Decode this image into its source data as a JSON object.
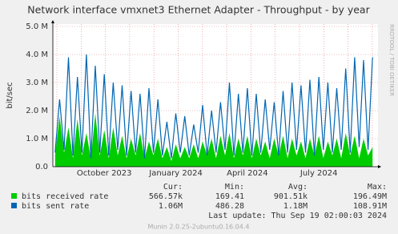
{
  "chart_data": {
    "type": "line",
    "title": "Network interface vmxnet3 Ethernet Adapter - Throughput - by year",
    "y_label": "bit/sec",
    "side_text": "RRDTOOL / TOBI OETIKER",
    "categories": [
      null,
      null,
      null,
      null,
      null,
      null,
      null,
      null,
      null,
      null,
      null,
      "October 2023",
      null,
      null,
      null,
      null,
      null,
      null,
      null,
      null,
      null,
      null,
      null,
      null,
      null,
      null,
      null,
      "January 2024",
      null,
      null,
      null,
      null,
      null,
      null,
      null,
      null,
      null,
      null,
      null,
      null,
      null,
      null,
      null,
      "April 2024",
      null,
      null,
      null,
      null,
      null,
      null,
      null,
      null,
      null,
      null,
      null,
      null,
      null,
      null,
      null,
      "July 2024",
      null,
      null,
      null,
      null,
      null,
      null,
      null,
      null,
      null,
      null,
      null,
      null
    ],
    "ylim": [
      0,
      5000000
    ],
    "yticks": [
      {
        "value": 0,
        "label": "0.0"
      },
      {
        "value": 1000000,
        "label": "1.0 M"
      },
      {
        "value": 2000000,
        "label": "2.0 M"
      },
      {
        "value": 3000000,
        "label": "3.0 M"
      },
      {
        "value": 4000000,
        "label": "4.0 M"
      },
      {
        "value": 5000000,
        "label": "5.0 M"
      }
    ],
    "grid": true,
    "stat_headers": [
      "Cur:",
      "Min:",
      "Avg:",
      "Max:"
    ],
    "series": [
      {
        "name": "bits received rate",
        "color": "#00cc00",
        "stats": [
          "566.57k",
          "169.41",
          "901.51k",
          "196.49M"
        ],
        "values": [
          400000,
          1800000,
          500000,
          1400000,
          300000,
          1700000,
          400000,
          1200000,
          300000,
          1900000,
          400000,
          1300000,
          300000,
          1400000,
          400000,
          1100000,
          300000,
          1000000,
          400000,
          1200000,
          300000,
          900000,
          400000,
          1000000,
          300000,
          700000,
          200000,
          800000,
          300000,
          700000,
          300000,
          800000,
          300000,
          900000,
          400000,
          1000000,
          300000,
          1100000,
          400000,
          1200000,
          300000,
          1000000,
          400000,
          1100000,
          300000,
          1000000,
          400000,
          900000,
          300000,
          1000000,
          400000,
          1100000,
          300000,
          1000000,
          400000,
          900000,
          300000,
          1000000,
          400000,
          1100000,
          300000,
          900000,
          400000,
          1000000,
          300000,
          1200000,
          400000,
          1100000,
          300000,
          1000000,
          400000,
          700000
        ]
      },
      {
        "name": "bits sent rate",
        "color": "#0066b3",
        "stats": [
          "1.06M",
          "486.28",
          "1.18M",
          "108.91M"
        ],
        "values": [
          500000,
          2400000,
          600000,
          3900000,
          400000,
          3200000,
          500000,
          4000000,
          300000,
          3600000,
          500000,
          3300000,
          400000,
          3000000,
          600000,
          2900000,
          400000,
          2700000,
          500000,
          2600000,
          300000,
          2800000,
          500000,
          2400000,
          400000,
          1600000,
          300000,
          1900000,
          500000,
          1800000,
          400000,
          1500000,
          500000,
          2200000,
          400000,
          2000000,
          500000,
          2300000,
          600000,
          3000000,
          400000,
          2600000,
          500000,
          2800000,
          400000,
          2600000,
          500000,
          2400000,
          600000,
          2300000,
          400000,
          2700000,
          500000,
          3000000,
          600000,
          2900000,
          500000,
          3100000,
          400000,
          3200000,
          600000,
          3000000,
          500000,
          2800000,
          600000,
          3500000,
          500000,
          3900000,
          700000,
          3800000,
          600000,
          3900000
        ]
      }
    ],
    "last_update": "Last update:  Thu Sep 19 02:00:03 2024",
    "footer": "Munin 2.0.25-2ubuntu0.16.04.4"
  }
}
